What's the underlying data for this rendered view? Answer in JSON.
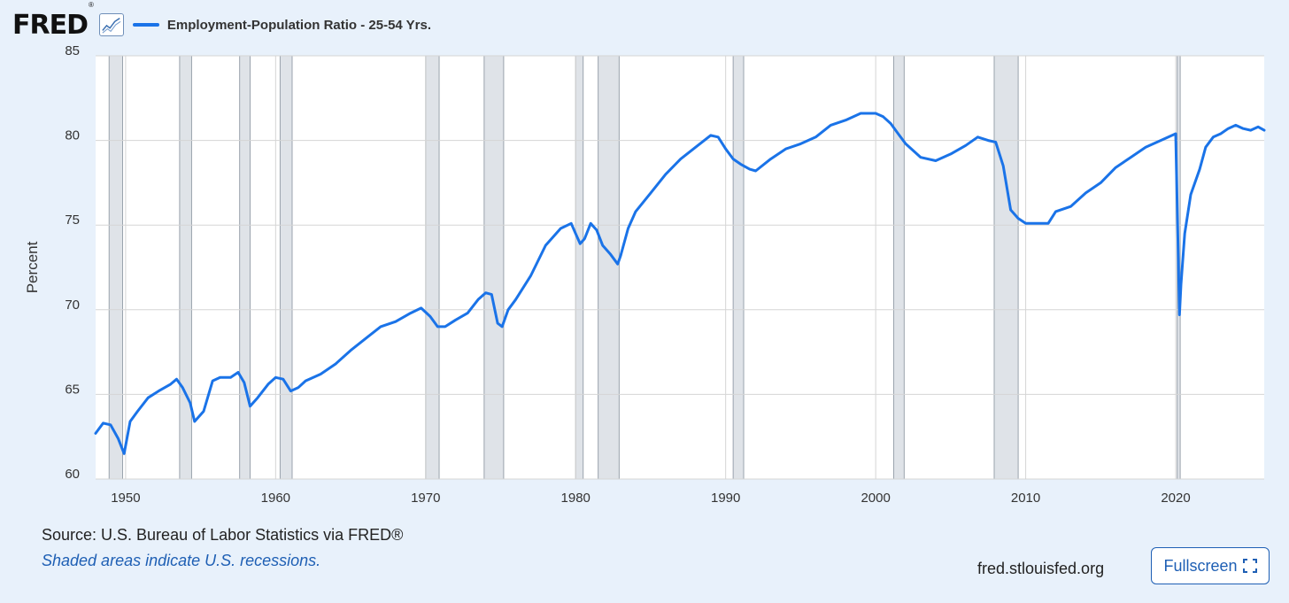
{
  "header": {
    "logo_text": "FRED",
    "logo_reg": "®",
    "legend_label": "Employment-Population Ratio - 25-54 Yrs.",
    "series_color": "#1a73e8"
  },
  "chart_data": {
    "type": "line",
    "title": "Employment-Population Ratio - 25-54 Yrs.",
    "xlabel": "",
    "ylabel": "Percent",
    "xlim": [
      1948,
      2025.9
    ],
    "ylim": [
      60,
      85
    ],
    "x_ticks": [
      "1950",
      "1960",
      "1970",
      "1980",
      "1990",
      "2000",
      "2010",
      "2020"
    ],
    "y_ticks": [
      "60",
      "65",
      "70",
      "75",
      "80",
      "85"
    ],
    "grid": true,
    "recession_shading": [
      [
        1948.9,
        1949.8
      ],
      [
        1953.6,
        1954.4
      ],
      [
        1957.6,
        1958.3
      ],
      [
        1960.3,
        1961.1
      ],
      [
        1970.0,
        1970.9
      ],
      [
        1973.9,
        1975.2
      ],
      [
        1980.0,
        1980.5
      ],
      [
        1981.5,
        1982.9
      ],
      [
        1990.5,
        1991.2
      ],
      [
        2001.2,
        2001.9
      ],
      [
        2007.9,
        2009.5
      ],
      [
        2020.1,
        2020.3
      ]
    ],
    "series": [
      {
        "name": "Employment-Population Ratio - 25-54 Yrs.",
        "color": "#1a73e8",
        "x": [
          1948.0,
          1948.5,
          1949.0,
          1949.5,
          1949.9,
          1950.3,
          1950.8,
          1951.5,
          1952.2,
          1953.0,
          1953.4,
          1953.8,
          1954.3,
          1954.6,
          1955.2,
          1955.8,
          1956.3,
          1957.0,
          1957.5,
          1957.9,
          1958.3,
          1958.8,
          1959.5,
          1960.0,
          1960.5,
          1961.0,
          1961.5,
          1962.0,
          1963.0,
          1964.0,
          1965.0,
          1966.0,
          1967.0,
          1968.0,
          1969.0,
          1969.7,
          1970.3,
          1970.8,
          1971.3,
          1972.0,
          1972.8,
          1973.5,
          1974.0,
          1974.4,
          1974.8,
          1975.1,
          1975.5,
          1976.0,
          1977.0,
          1978.0,
          1979.0,
          1979.7,
          1980.0,
          1980.3,
          1980.6,
          1981.0,
          1981.4,
          1981.8,
          1982.3,
          1982.8,
          1983.0,
          1983.5,
          1984.0,
          1985.0,
          1986.0,
          1987.0,
          1988.0,
          1989.0,
          1989.5,
          1990.0,
          1990.5,
          1991.0,
          1991.6,
          1992.0,
          1993.0,
          1994.0,
          1995.0,
          1996.0,
          1997.0,
          1998.0,
          1999.0,
          2000.0,
          2000.5,
          2001.0,
          2001.5,
          2002.0,
          2003.0,
          2004.0,
          2005.0,
          2006.0,
          2006.8,
          2007.5,
          2008.0,
          2008.5,
          2009.0,
          2009.5,
          2010.0,
          2011.0,
          2011.5,
          2012.0,
          2013.0,
          2014.0,
          2015.0,
          2016.0,
          2017.0,
          2018.0,
          2019.0,
          2020.0,
          2020.25,
          2020.35,
          2020.6,
          2021.0,
          2021.6,
          2022.0,
          2022.5,
          2023.0,
          2023.5,
          2024.0,
          2024.5,
          2025.0,
          2025.5,
          2025.9
        ],
        "values": [
          62.7,
          63.3,
          63.2,
          62.4,
          61.5,
          63.4,
          64.0,
          64.8,
          65.2,
          65.6,
          65.9,
          65.4,
          64.5,
          63.4,
          64.0,
          65.8,
          66.0,
          66.0,
          66.3,
          65.7,
          64.3,
          64.8,
          65.6,
          66.0,
          65.9,
          65.2,
          65.4,
          65.8,
          66.2,
          66.8,
          67.6,
          68.3,
          69.0,
          69.3,
          69.8,
          70.1,
          69.6,
          69.0,
          69.0,
          69.4,
          69.8,
          70.6,
          71.0,
          70.9,
          69.2,
          69.0,
          70.0,
          70.6,
          72.0,
          73.8,
          74.8,
          75.1,
          74.5,
          73.9,
          74.2,
          75.1,
          74.7,
          73.8,
          73.3,
          72.7,
          73.2,
          74.8,
          75.8,
          76.9,
          78.0,
          78.9,
          79.6,
          80.3,
          80.2,
          79.5,
          78.9,
          78.6,
          78.3,
          78.2,
          78.9,
          79.5,
          79.8,
          80.2,
          80.9,
          81.2,
          81.6,
          81.6,
          81.4,
          81.0,
          80.4,
          79.8,
          79.0,
          78.8,
          79.2,
          79.7,
          80.2,
          80.0,
          79.9,
          78.5,
          75.9,
          75.4,
          75.1,
          75.1,
          75.1,
          75.8,
          76.1,
          76.9,
          77.5,
          78.4,
          79.0,
          79.6,
          80.0,
          80.4,
          69.7,
          71.5,
          74.5,
          76.8,
          78.3,
          79.6,
          80.2,
          80.4,
          80.7,
          80.9,
          80.7,
          80.6,
          80.8,
          80.6
        ]
      }
    ]
  },
  "footer": {
    "source": "Source: U.S. Bureau of Labor Statistics via FRED®",
    "note": "Shaded areas indicate U.S. recessions.",
    "site": "fred.stlouisfed.org",
    "fullscreen_label": "Fullscreen"
  }
}
